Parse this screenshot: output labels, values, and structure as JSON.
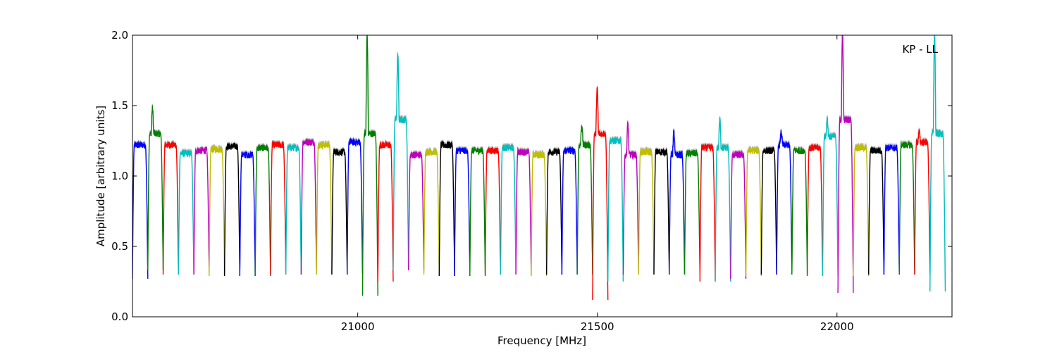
{
  "chart_data": {
    "type": "line",
    "title": "",
    "annotation": "KP - LL",
    "xlabel": "Frequency [MHz]",
    "ylabel": "Amplitude [arbitrary units]",
    "xlim": [
      20530,
      22240
    ],
    "ylim": [
      0.0,
      2.0
    ],
    "xticks": [
      21000,
      21500,
      22000
    ],
    "yticks": [
      0.0,
      0.5,
      1.0,
      1.5,
      2.0
    ],
    "ytick_labels": [
      "0.0",
      "0.5",
      "1.0",
      "1.5",
      "2.0"
    ],
    "grid": false,
    "legend": "none",
    "series_colors": [
      "#0000ff",
      "#008000",
      "#ff0000",
      "#00bfbf",
      "#bf00bf",
      "#bfbf00",
      "#000000"
    ],
    "shadow_color": "#bbbbbb",
    "channel_width_mhz": 32,
    "channels": [
      {
        "start": 20530,
        "level": 1.22,
        "dip": 0.27,
        "spike": null
      },
      {
        "start": 20562,
        "level": 1.3,
        "dip": 0.33,
        "spike": 1.48
      },
      {
        "start": 20594,
        "level": 1.22,
        "dip": 0.3,
        "spike": null
      },
      {
        "start": 20626,
        "level": 1.16,
        "dip": 0.3,
        "spike": null
      },
      {
        "start": 20658,
        "level": 1.18,
        "dip": 0.3,
        "spike": null
      },
      {
        "start": 20690,
        "level": 1.19,
        "dip": 0.29,
        "spike": null
      },
      {
        "start": 20722,
        "level": 1.21,
        "dip": 0.29,
        "spike": null
      },
      {
        "start": 20754,
        "level": 1.15,
        "dip": 0.29,
        "spike": null
      },
      {
        "start": 20786,
        "level": 1.2,
        "dip": 0.29,
        "spike": null
      },
      {
        "start": 20818,
        "level": 1.22,
        "dip": 0.3,
        "spike": null
      },
      {
        "start": 20850,
        "level": 1.2,
        "dip": 0.3,
        "spike": null
      },
      {
        "start": 20882,
        "level": 1.24,
        "dip": 0.3,
        "spike": null
      },
      {
        "start": 20914,
        "level": 1.22,
        "dip": 0.3,
        "spike": null
      },
      {
        "start": 20946,
        "level": 1.17,
        "dip": 0.3,
        "spike": null
      },
      {
        "start": 20978,
        "level": 1.24,
        "dip": 0.3,
        "spike": null
      },
      {
        "start": 21010,
        "level": 1.3,
        "dip": 0.15,
        "spike": 2.0
      },
      {
        "start": 21042,
        "level": 1.22,
        "dip": 0.25,
        "spike": null
      },
      {
        "start": 21074,
        "level": 1.4,
        "dip": 0.33,
        "spike": 1.86
      },
      {
        "start": 21106,
        "level": 1.15,
        "dip": 0.33,
        "spike": null
      },
      {
        "start": 21138,
        "level": 1.17,
        "dip": 0.3,
        "spike": null
      },
      {
        "start": 21170,
        "level": 1.22,
        "dip": 0.29,
        "spike": null
      },
      {
        "start": 21202,
        "level": 1.18,
        "dip": 0.29,
        "spike": null
      },
      {
        "start": 21234,
        "level": 1.18,
        "dip": 0.29,
        "spike": null
      },
      {
        "start": 21266,
        "level": 1.18,
        "dip": 0.3,
        "spike": null
      },
      {
        "start": 21298,
        "level": 1.2,
        "dip": 0.3,
        "spike": null
      },
      {
        "start": 21330,
        "level": 1.17,
        "dip": 0.3,
        "spike": null
      },
      {
        "start": 21362,
        "level": 1.15,
        "dip": 0.29,
        "spike": null
      },
      {
        "start": 21394,
        "level": 1.17,
        "dip": 0.3,
        "spike": null
      },
      {
        "start": 21426,
        "level": 1.18,
        "dip": 0.3,
        "spike": null
      },
      {
        "start": 21458,
        "level": 1.22,
        "dip": 0.3,
        "spike": 1.36
      },
      {
        "start": 21490,
        "level": 1.3,
        "dip": 0.12,
        "spike": 1.62
      },
      {
        "start": 21522,
        "level": 1.25,
        "dip": 0.25,
        "spike": null
      },
      {
        "start": 21554,
        "level": 1.15,
        "dip": 0.3,
        "spike": 1.37
      },
      {
        "start": 21586,
        "level": 1.17,
        "dip": 0.3,
        "spike": null
      },
      {
        "start": 21618,
        "level": 1.17,
        "dip": 0.3,
        "spike": null
      },
      {
        "start": 21650,
        "level": 1.15,
        "dip": 0.3,
        "spike": 1.31
      },
      {
        "start": 21682,
        "level": 1.16,
        "dip": 0.3,
        "spike": null
      },
      {
        "start": 21714,
        "level": 1.2,
        "dip": 0.25,
        "spike": null
      },
      {
        "start": 21746,
        "level": 1.2,
        "dip": 0.25,
        "spike": 1.4
      },
      {
        "start": 21778,
        "level": 1.15,
        "dip": 0.27,
        "spike": null
      },
      {
        "start": 21810,
        "level": 1.18,
        "dip": 0.29,
        "spike": null
      },
      {
        "start": 21842,
        "level": 1.18,
        "dip": 0.3,
        "spike": null
      },
      {
        "start": 21874,
        "level": 1.22,
        "dip": 0.3,
        "spike": 1.31
      },
      {
        "start": 21906,
        "level": 1.18,
        "dip": 0.3,
        "spike": null
      },
      {
        "start": 21938,
        "level": 1.2,
        "dip": 0.29,
        "spike": null
      },
      {
        "start": 21970,
        "level": 1.28,
        "dip": 0.29,
        "spike": 1.4
      },
      {
        "start": 22002,
        "level": 1.4,
        "dip": 0.17,
        "spike": 2.0
      },
      {
        "start": 22034,
        "level": 1.2,
        "dip": 0.29,
        "spike": null
      },
      {
        "start": 22066,
        "level": 1.18,
        "dip": 0.3,
        "spike": null
      },
      {
        "start": 22098,
        "level": 1.2,
        "dip": 0.3,
        "spike": null
      },
      {
        "start": 22130,
        "level": 1.22,
        "dip": 0.3,
        "spike": null
      },
      {
        "start": 22162,
        "level": 1.24,
        "dip": 0.3,
        "spike": 1.31
      },
      {
        "start": 22194,
        "level": 1.3,
        "dip": 0.18,
        "spike": 2.0
      }
    ]
  }
}
